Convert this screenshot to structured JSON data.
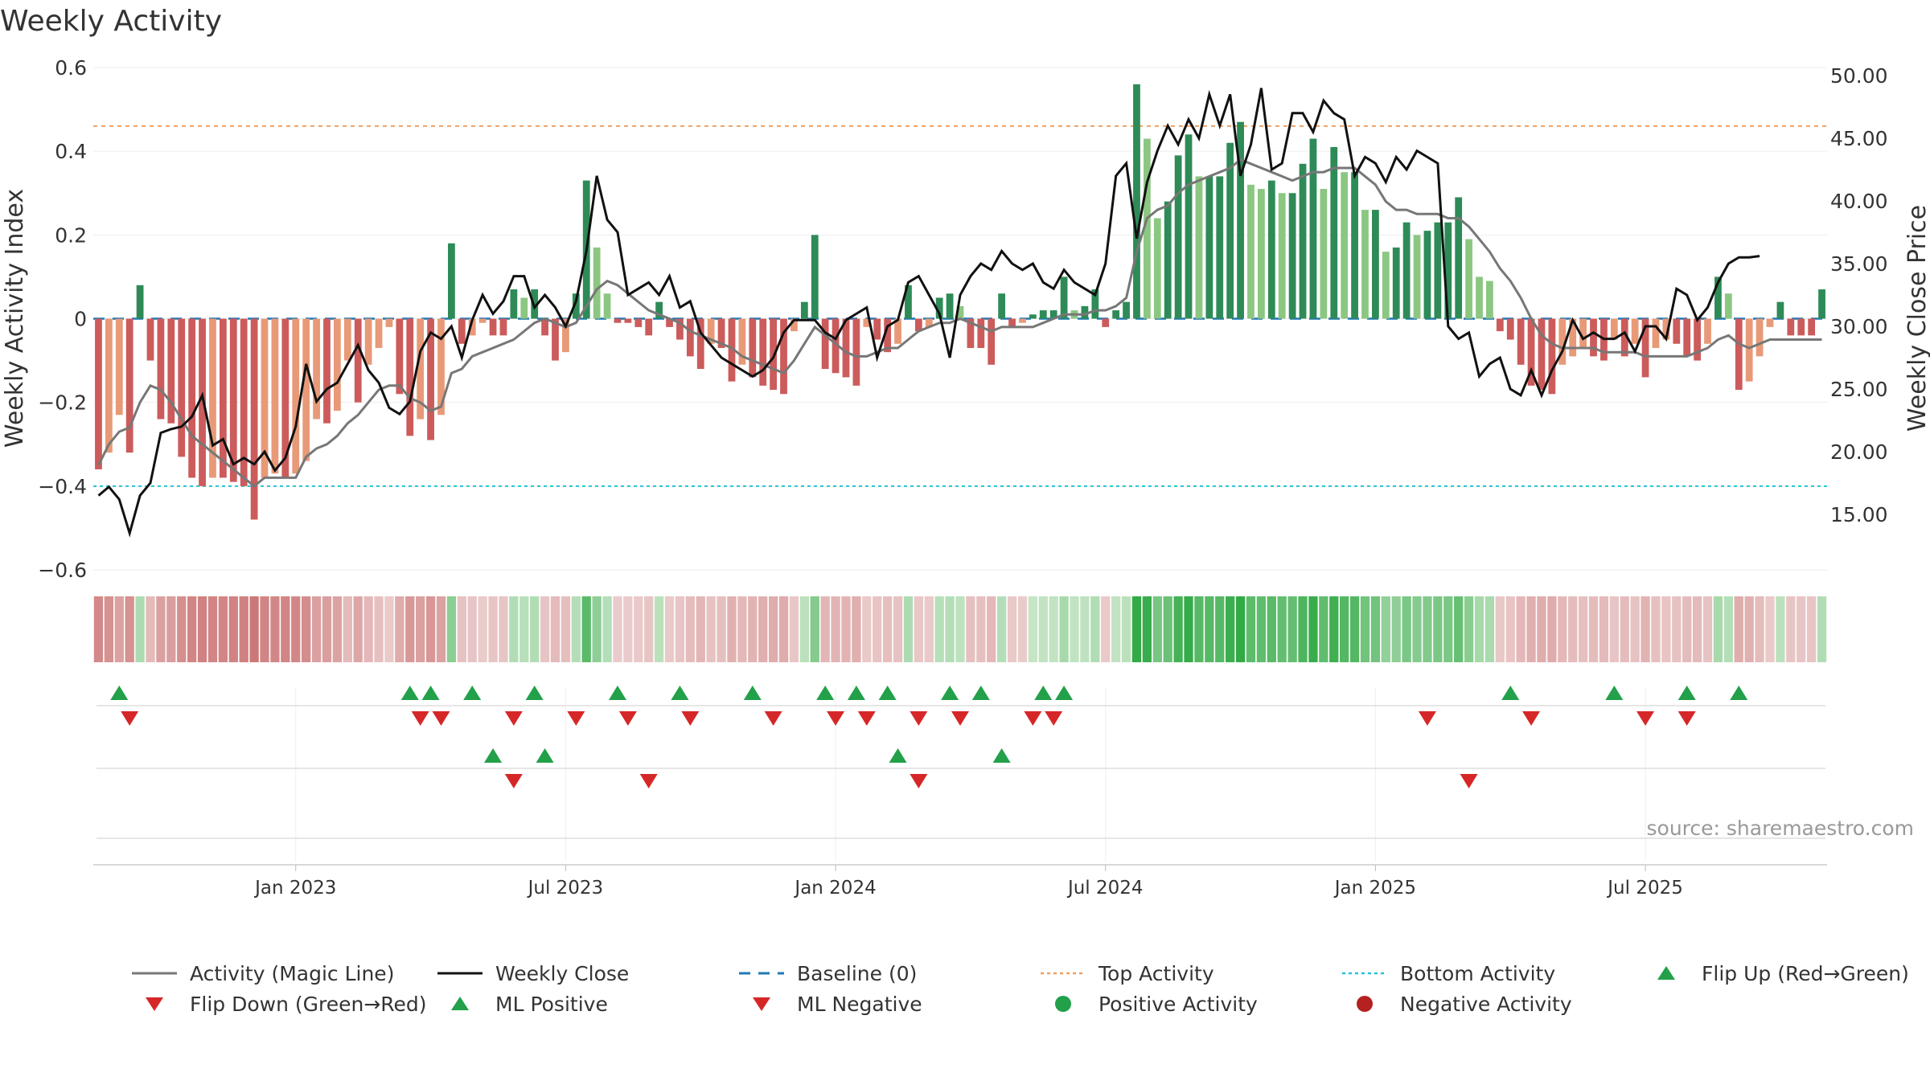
{
  "chart_data": {
    "type": "bar",
    "title": "Weekly Activity",
    "ylabel": "Weekly Activity Index",
    "y2label": "Weekly Close Price",
    "ylim": [
      -0.6,
      0.6
    ],
    "y2lim": [
      10,
      50
    ],
    "yticks": [
      "0.6",
      "0.4",
      "0.2",
      "0",
      "−0.2",
      "−0.4",
      "−0.6"
    ],
    "y2ticks": [
      "50.00",
      "45.00",
      "40.00",
      "35.00",
      "30.00",
      "25.00",
      "20.00",
      "15.00"
    ],
    "xticks": [
      "Jan 2023",
      "Jul 2023",
      "Jan 2024",
      "Jul 2024",
      "Jan 2025",
      "Jul 2025"
    ],
    "source": "source: sharemaestro.com",
    "top_activity": 0.46,
    "bottom_activity": -0.4,
    "baseline": 0,
    "activity_weekly": [
      -0.36,
      -0.32,
      -0.23,
      -0.32,
      0.08,
      -0.1,
      -0.24,
      -0.25,
      -0.33,
      -0.38,
      -0.4,
      -0.38,
      -0.38,
      -0.39,
      -0.4,
      -0.48,
      -0.38,
      -0.37,
      -0.38,
      -0.37,
      -0.34,
      -0.24,
      -0.25,
      -0.22,
      -0.1,
      -0.2,
      -0.11,
      -0.07,
      -0.02,
      -0.18,
      -0.28,
      -0.24,
      -0.29,
      -0.23,
      0.18,
      -0.06,
      -0.04,
      -0.01,
      -0.04,
      -0.04,
      0.07,
      0.05,
      0.07,
      -0.04,
      -0.1,
      -0.08,
      0.06,
      0.33,
      0.17,
      0.06,
      -0.01,
      -0.01,
      -0.02,
      -0.04,
      0.04,
      -0.02,
      -0.05,
      -0.09,
      -0.12,
      -0.06,
      -0.07,
      -0.15,
      -0.11,
      -0.14,
      -0.16,
      -0.17,
      -0.18,
      -0.03,
      0.04,
      0.2,
      -0.12,
      -0.13,
      -0.14,
      -0.16,
      -0.02,
      -0.05,
      -0.08,
      -0.06,
      0.08,
      -0.03,
      -0.02,
      0.05,
      0.06,
      0.03,
      -0.07,
      -0.07,
      -0.11,
      0.06,
      -0.02,
      -0.01,
      0.01,
      0.02,
      0.02,
      0.1,
      0.02,
      0.03,
      0.07,
      -0.02,
      0.02,
      0.04,
      0.56,
      0.43,
      0.24,
      0.28,
      0.39,
      0.44,
      0.34,
      0.34,
      0.34,
      0.42,
      0.47,
      0.32,
      0.31,
      0.33,
      0.3,
      0.3,
      0.37,
      0.43,
      0.31,
      0.41,
      0.35,
      0.35,
      0.26,
      0.26,
      0.16,
      0.17,
      0.23,
      0.2,
      0.21,
      0.23,
      0.23,
      0.29,
      0.19,
      0.1,
      0.09,
      -0.03,
      -0.05,
      -0.11,
      -0.16,
      -0.17,
      -0.18,
      -0.11,
      -0.09,
      -0.07,
      -0.09,
      -0.1,
      -0.05,
      -0.09,
      -0.06,
      -0.14,
      -0.07,
      -0.05,
      -0.06,
      -0.09,
      -0.1,
      -0.06,
      0.1,
      0.06,
      -0.17,
      -0.15,
      -0.09,
      -0.02,
      0.04,
      -0.04,
      -0.04,
      -0.04,
      0.07
    ],
    "weekly_close": [
      16.5,
      17.2,
      16.2,
      13.5,
      16.5,
      17.5,
      21.5,
      21.8,
      22.0,
      22.8,
      24.5,
      20.5,
      21.0,
      19.0,
      19.5,
      19.0,
      20.0,
      18.5,
      19.5,
      22.0,
      27.0,
      24.0,
      25.0,
      25.5,
      27.0,
      28.5,
      26.5,
      25.5,
      23.5,
      23.0,
      24.0,
      28.0,
      29.5,
      29.0,
      30.0,
      27.5,
      30.5,
      32.5,
      31.0,
      32.0,
      34.0,
      34.0,
      31.5,
      32.5,
      31.5,
      30.0,
      32.0,
      36.0,
      42.0,
      38.5,
      37.5,
      32.5,
      33.0,
      33.5,
      32.5,
      34.0,
      31.5,
      32.0,
      29.5,
      28.5,
      27.5,
      27.0,
      26.5,
      26.0,
      26.5,
      27.5,
      29.5,
      30.5,
      30.5,
      30.5,
      29.5,
      29.0,
      30.5,
      31.0,
      31.5,
      27.5,
      30.0,
      30.5,
      33.5,
      34.0,
      32.5,
      31.0,
      27.5,
      32.5,
      34.0,
      35.0,
      34.5,
      36.0,
      35.0,
      34.5,
      35.0,
      33.5,
      33.0,
      34.5,
      33.5,
      33.0,
      32.5,
      35.0,
      42.0,
      43.0,
      37.0,
      41.5,
      44.0,
      46.0,
      44.5,
      46.5,
      45.0,
      48.5,
      46.0,
      48.5,
      42.0,
      44.5,
      49.0,
      42.5,
      43.0,
      47.0,
      47.0,
      45.5,
      48.0,
      47.0,
      46.5,
      42.0,
      43.5,
      43.0,
      41.5,
      43.5,
      42.5,
      44.0,
      43.5,
      43.0,
      30.0,
      29.0,
      29.5,
      26.0,
      27.0,
      27.5,
      25.0,
      24.5,
      26.5,
      24.5,
      26.5,
      28.0,
      30.5,
      29.0,
      29.5,
      29.0,
      29.0,
      29.5,
      28.0,
      30.0,
      30.0,
      29.0,
      33.0,
      32.5,
      30.5,
      31.5,
      33.5,
      35.0,
      35.5,
      35.5,
      35.6
    ],
    "magic_line": [
      -0.35,
      -0.3,
      -0.27,
      -0.26,
      -0.2,
      -0.16,
      -0.17,
      -0.2,
      -0.24,
      -0.28,
      -0.3,
      -0.32,
      -0.34,
      -0.36,
      -0.38,
      -0.4,
      -0.38,
      -0.38,
      -0.38,
      -0.38,
      -0.33,
      -0.31,
      -0.3,
      -0.28,
      -0.25,
      -0.23,
      -0.2,
      -0.17,
      -0.16,
      -0.16,
      -0.19,
      -0.2,
      -0.22,
      -0.21,
      -0.13,
      -0.12,
      -0.09,
      -0.08,
      -0.07,
      -0.06,
      -0.05,
      -0.03,
      -0.01,
      0.0,
      -0.01,
      -0.02,
      -0.01,
      0.03,
      0.07,
      0.09,
      0.08,
      0.06,
      0.04,
      0.02,
      0.01,
      0.0,
      -0.01,
      -0.03,
      -0.04,
      -0.05,
      -0.06,
      -0.07,
      -0.09,
      -0.1,
      -0.11,
      -0.12,
      -0.13,
      -0.1,
      -0.06,
      -0.02,
      -0.04,
      -0.06,
      -0.08,
      -0.09,
      -0.09,
      -0.08,
      -0.07,
      -0.07,
      -0.05,
      -0.03,
      -0.02,
      -0.01,
      -0.01,
      0.0,
      -0.01,
      -0.02,
      -0.03,
      -0.02,
      -0.02,
      -0.02,
      -0.02,
      -0.01,
      0.0,
      0.01,
      0.01,
      0.01,
      0.02,
      0.02,
      0.03,
      0.05,
      0.16,
      0.24,
      0.26,
      0.27,
      0.3,
      0.32,
      0.33,
      0.34,
      0.35,
      0.36,
      0.38,
      0.37,
      0.36,
      0.35,
      0.34,
      0.33,
      0.34,
      0.35,
      0.35,
      0.36,
      0.36,
      0.36,
      0.34,
      0.32,
      0.28,
      0.26,
      0.26,
      0.25,
      0.25,
      0.25,
      0.24,
      0.24,
      0.22,
      0.19,
      0.16,
      0.12,
      0.09,
      0.05,
      0.0,
      -0.04,
      -0.06,
      -0.07,
      -0.07,
      -0.07,
      -0.07,
      -0.08,
      -0.08,
      -0.08,
      -0.08,
      -0.09,
      -0.09,
      -0.09,
      -0.09,
      -0.09,
      -0.08,
      -0.07,
      -0.05,
      -0.04,
      -0.06,
      -0.07,
      -0.06,
      -0.05,
      -0.05,
      -0.05,
      -0.05,
      -0.05,
      -0.05
    ],
    "flip_up_weeks": [
      2,
      30,
      32,
      36,
      42,
      50,
      56,
      63,
      70,
      73,
      76,
      82,
      85,
      91,
      93,
      136,
      146,
      153,
      158
    ],
    "flip_down_weeks": [
      3,
      31,
      33,
      40,
      46,
      51,
      57,
      65,
      71,
      74,
      79,
      83,
      90,
      92,
      128,
      138,
      149,
      153
    ],
    "ml_positive_weeks": [
      38,
      43,
      77,
      87
    ],
    "ml_negative_weeks": [
      40,
      53,
      79,
      132
    ],
    "legend": [
      {
        "label": "Activity (Magic Line)",
        "color": "#777777"
      },
      {
        "label": "Weekly Close",
        "color": "#111111"
      },
      {
        "label": "Baseline (0)",
        "color": "#1f77b4"
      },
      {
        "label": "Top Activity",
        "color": "#f0a060"
      },
      {
        "label": "Bottom Activity",
        "color": "#22c4d4"
      },
      {
        "label": "Flip Up (Red→Green)",
        "color": "#22a04a"
      },
      {
        "label": "Flip Down (Green→Red)",
        "color": "#d62728"
      },
      {
        "label": "ML Positive",
        "color": "#22a04a"
      },
      {
        "label": "ML Negative",
        "color": "#d62728"
      },
      {
        "label": "Positive Activity",
        "color": "#22a04a"
      },
      {
        "label": "Negative Activity",
        "color": "#b52020"
      }
    ]
  }
}
